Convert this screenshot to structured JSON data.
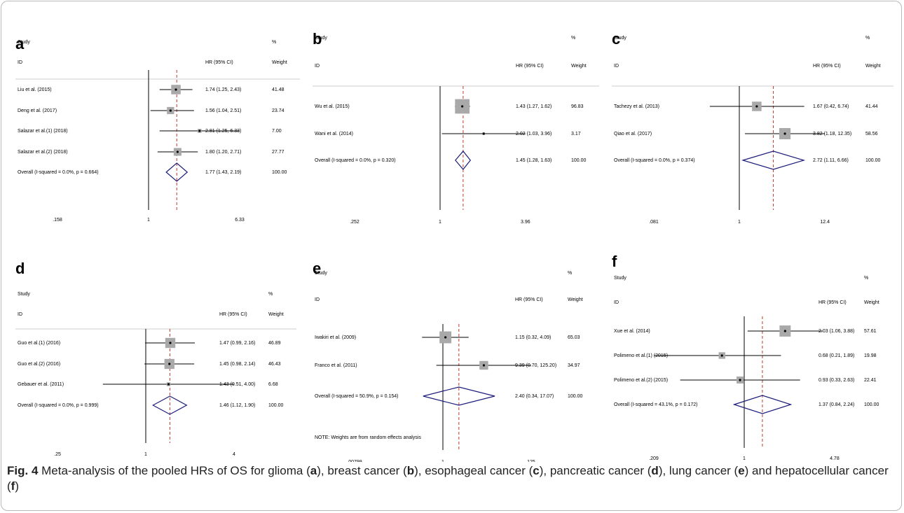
{
  "chart_data": [
    {
      "type": "forest",
      "panel_label": "a",
      "col_study": "Study",
      "col_id": "ID",
      "col_hr": "HR (95% CI)",
      "col_pct": "%",
      "col_weight": "Weight",
      "studies": [
        {
          "name": "Liu et al. (2015)",
          "hr": 1.74,
          "lo": 1.25,
          "hi": 2.43,
          "hr_text": "1.74 (1.25, 2.43)",
          "weight": "41.48"
        },
        {
          "name": "Deng et al. (2017)",
          "hr": 1.56,
          "lo": 1.04,
          "hi": 2.51,
          "hr_text": "1.56 (1.04, 2.51)",
          "weight": "23.74"
        },
        {
          "name": "Salazar et al.(1) (2018)",
          "hr": 2.81,
          "lo": 1.25,
          "hi": 6.33,
          "hr_text": "2.81 (1.25, 6.33)",
          "weight": "7.00"
        },
        {
          "name": "Salazar et al.(2) (2018)",
          "hr": 1.8,
          "lo": 1.2,
          "hi": 2.71,
          "hr_text": "1.80 (1.20, 2.71)",
          "weight": "27.77"
        }
      ],
      "overall": {
        "name": "Overall  (I-squared = 0.0%, p = 0.664)",
        "hr": 1.77,
        "lo": 1.43,
        "hi": 2.19,
        "hr_text": "1.77 (1.43, 2.19)",
        "weight": "100.00"
      },
      "xticks": [
        {
          "v": 0.158,
          "label": ".158"
        },
        {
          "v": 1,
          "label": "1"
        },
        {
          "v": 6.33,
          "label": "6.33"
        }
      ],
      "note": ""
    },
    {
      "type": "forest",
      "panel_label": "b",
      "col_study": "Study",
      "col_id": "ID",
      "col_hr": "HR (95% CI)",
      "col_pct": "%",
      "col_weight": "Weight",
      "studies": [
        {
          "name": "Wu et al. (2015)",
          "hr": 1.43,
          "lo": 1.27,
          "hi": 1.62,
          "hr_text": "1.43 (1.27, 1.62)",
          "weight": "96.83"
        },
        {
          "name": "Wani et al. (2014)",
          "hr": 2.02,
          "lo": 1.03,
          "hi": 3.96,
          "hr_text": "2.02 (1.03, 3.96)",
          "weight": "3.17"
        }
      ],
      "overall": {
        "name": "Overall  (I-squared = 0.0%, p = 0.320)",
        "hr": 1.45,
        "lo": 1.28,
        "hi": 1.63,
        "hr_text": "1.45 (1.28, 1.63)",
        "weight": "100.00"
      },
      "xticks": [
        {
          "v": 0.252,
          "label": ".252"
        },
        {
          "v": 1,
          "label": "1"
        },
        {
          "v": 3.96,
          "label": "3.96"
        }
      ],
      "note": ""
    },
    {
      "type": "forest",
      "panel_label": "c",
      "col_study": "Study",
      "col_id": "ID",
      "col_hr": "HR (95% CI)",
      "col_pct": "%",
      "col_weight": "Weight",
      "studies": [
        {
          "name": "Tachezy et al. (2013)",
          "hr": 1.67,
          "lo": 0.42,
          "hi": 6.74,
          "hr_text": "1.67 (0.42, 6.74)",
          "weight": "41.44"
        },
        {
          "name": "Qiao et al. (2017)",
          "hr": 3.82,
          "lo": 1.18,
          "hi": 12.35,
          "hr_text": "3.82 (1.18, 12.35)",
          "weight": "58.56"
        }
      ],
      "overall": {
        "name": "Overall  (I-squared = 0.0%, p = 0.374)",
        "hr": 2.72,
        "lo": 1.11,
        "hi": 6.66,
        "hr_text": "2.72 (1.11, 6.66)",
        "weight": "100.00"
      },
      "xticks": [
        {
          "v": 0.081,
          "label": ".081"
        },
        {
          "v": 1,
          "label": "1"
        },
        {
          "v": 12.4,
          "label": "12.4"
        }
      ],
      "note": ""
    },
    {
      "type": "forest",
      "panel_label": "d",
      "col_study": "Study",
      "col_id": "ID",
      "col_hr": "HR (95% CI)",
      "col_pct": "%",
      "col_weight": "Weight",
      "studies": [
        {
          "name": "Guo et al.(1) (2016)",
          "hr": 1.47,
          "lo": 0.99,
          "hi": 2.16,
          "hr_text": "1.47 (0.99, 2.16)",
          "weight": "46.89"
        },
        {
          "name": "Guo et al.(2) (2016)",
          "hr": 1.45,
          "lo": 0.98,
          "hi": 2.14,
          "hr_text": "1.45 (0.98, 2.14)",
          "weight": "46.43"
        },
        {
          "name": "Gebauer et al. (2011)",
          "hr": 1.43,
          "lo": 0.51,
          "hi": 4.0,
          "hr_text": "1.43 (0.51, 4.00)",
          "weight": "6.68"
        }
      ],
      "overall": {
        "name": "Overall  (I-squared = 0.0%, p = 0.999)",
        "hr": 1.46,
        "lo": 1.12,
        "hi": 1.9,
        "hr_text": "1.46 (1.12, 1.90)",
        "weight": "100.00"
      },
      "xticks": [
        {
          "v": 0.25,
          "label": ".25"
        },
        {
          "v": 1,
          "label": "1"
        },
        {
          "v": 4,
          "label": "4"
        }
      ],
      "note": ""
    },
    {
      "type": "forest",
      "panel_label": "e",
      "col_study": "Study",
      "col_id": "ID",
      "col_hr": "HR (95% CI)",
      "col_pct": "%",
      "col_weight": "Weight",
      "studies": [
        {
          "name": "Iwakiri et al. (2009)",
          "hr": 1.15,
          "lo": 0.32,
          "hi": 4.09,
          "hr_text": "1.15 (0.32, 4.09)",
          "weight": "65.03"
        },
        {
          "name": "Franco et al. (2011)",
          "hr": 9.39,
          "lo": 0.7,
          "hi": 125.2,
          "hr_text": "9.39 (0.70, 125.20)",
          "weight": "34.97"
        }
      ],
      "overall": {
        "name": "Overall  (I-squared = 50.9%, p = 0.154)",
        "hr": 2.4,
        "lo": 0.34,
        "hi": 17.07,
        "hr_text": "2.40 (0.34, 17.07)",
        "weight": "100.00"
      },
      "xticks": [
        {
          "v": 0.00799,
          "label": ".00799"
        },
        {
          "v": 1,
          "label": "1"
        },
        {
          "v": 125,
          "label": "125"
        }
      ],
      "note": "NOTE: Weights are from random effects analysis"
    },
    {
      "type": "forest",
      "panel_label": "f",
      "col_study": "Study",
      "col_id": "ID",
      "col_hr": "HR (95% CI)",
      "col_pct": "%",
      "col_weight": "Weight",
      "studies": [
        {
          "name": "Xue et al. (2014)",
          "hr": 2.03,
          "lo": 1.06,
          "hi": 3.88,
          "hr_text": "2.03 (1.06, 3.88)",
          "weight": "57.61"
        },
        {
          "name": "Polimeno et al.(1) (2015)",
          "hr": 0.68,
          "lo": 0.21,
          "hi": 1.89,
          "hr_text": "0.68 (0.21, 1.89)",
          "weight": "19.98"
        },
        {
          "name": "Polimeno et al.(2) (2015)",
          "hr": 0.93,
          "lo": 0.33,
          "hi": 2.63,
          "hr_text": "0.93 (0.33, 2.63)",
          "weight": "22.41"
        }
      ],
      "overall": {
        "name": "Overall  (I-squared = 43.1%, p = 0.172)",
        "hr": 1.37,
        "lo": 0.84,
        "hi": 2.24,
        "hr_text": "1.37 (0.84, 2.24)",
        "weight": "100.00"
      },
      "xticks": [
        {
          "v": 0.209,
          "label": ".209"
        },
        {
          "v": 1,
          "label": "1"
        },
        {
          "v": 4.78,
          "label": "4.78"
        }
      ],
      "note": ""
    }
  ],
  "caption": {
    "fig_label": "Fig. 4",
    "text_1": "  Meta-analysis of the pooled HRs of OS for glioma (",
    "l1": "a",
    "text_2": "), breast cancer (",
    "l2": "b",
    "text_3": "), esophageal cancer (",
    "l3": "c",
    "text_4": "), pancreatic cancer (",
    "l4": "d",
    "text_5": "), lung cancer (",
    "l5": "e",
    "text_6": ") and hepatocellular cancer (",
    "l6": "f",
    "text_7": ")"
  },
  "colors": {
    "ci_line": "#000000",
    "box": "#a9a9a9",
    "diamond": "#1c1c7a",
    "overall_line": "#c0392b"
  }
}
